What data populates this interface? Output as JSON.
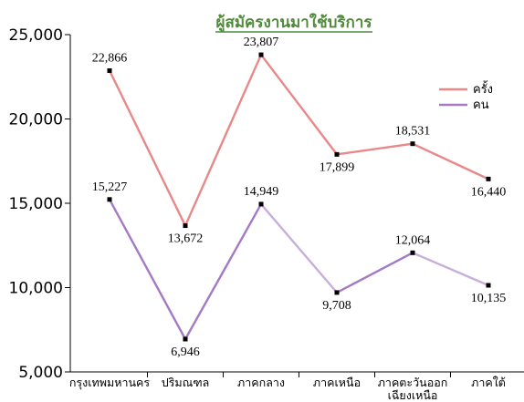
{
  "chart_data": {
    "type": "line",
    "title": "ผู้สมัครงานมาใช้บริการ",
    "categories": [
      [
        "กรุงเทพมหานคร"
      ],
      [
        "ปริมณฑล"
      ],
      [
        "ภาคกลาง"
      ],
      [
        "ภาคเหนือ"
      ],
      [
        "ภาคตะวันออก",
        "เฉียงเหนือ"
      ],
      [
        "ภาคใต้"
      ]
    ],
    "series": [
      {
        "name": "ครั้ง",
        "color": "#e88888",
        "values": [
          22866,
          13672,
          23807,
          17899,
          18531,
          16440
        ],
        "labels": [
          "22,866",
          "13,672",
          "23,807",
          "17,899",
          "18,531",
          "16,440"
        ],
        "label_pos": [
          "above",
          "below",
          "above",
          "below",
          "above",
          "below"
        ]
      },
      {
        "name": "คน",
        "color": "#a57ac4",
        "light_color": "#c8aedb",
        "values": [
          15227,
          6946,
          14949,
          9708,
          12064,
          10135
        ],
        "labels": [
          "15,227",
          "6,946",
          "14,949",
          "9,708",
          "12,064",
          "10,135"
        ],
        "label_pos": [
          "above",
          "below",
          "above",
          "below",
          "above",
          "below"
        ]
      }
    ],
    "yticks": [
      "5,000",
      "10,000",
      "15,000",
      "20,000",
      "25,000"
    ],
    "ytick_values": [
      5000,
      10000,
      15000,
      20000,
      25000
    ],
    "ylim": [
      5000,
      25000
    ],
    "legend_position": "top-right",
    "grid": false
  }
}
